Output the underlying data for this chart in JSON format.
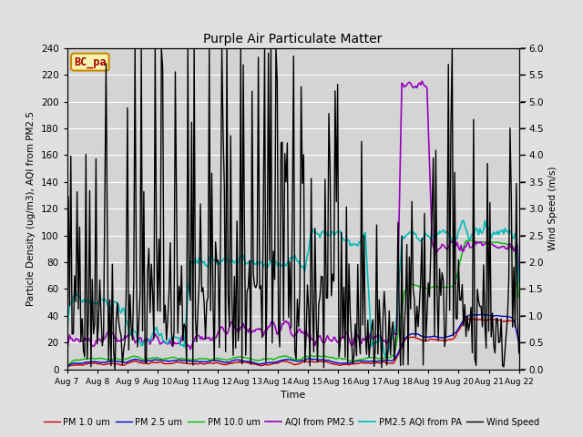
{
  "title": "Purple Air Particulate Matter",
  "xlabel": "Time",
  "ylabel_left": "Particle Density (ug/m3), AQI from PM2.5",
  "ylabel_right": "Wind Speed (m/s)",
  "ylim_left": [
    0,
    240
  ],
  "ylim_right": [
    0,
    6.0
  ],
  "yticks_left": [
    0,
    20,
    40,
    60,
    80,
    100,
    120,
    140,
    160,
    180,
    200,
    220,
    240
  ],
  "yticks_right": [
    0.0,
    0.5,
    1.0,
    1.5,
    2.0,
    2.5,
    3.0,
    3.5,
    4.0,
    4.5,
    5.0,
    5.5,
    6.0
  ],
  "xtick_labels": [
    "Aug 7",
    "Aug 8",
    "Aug 9",
    "Aug 10",
    "Aug 11",
    "Aug 12",
    "Aug 13",
    "Aug 14",
    "Aug 15",
    "Aug 16",
    "Aug 17",
    "Aug 18",
    "Aug 19",
    "Aug 20",
    "Aug 21",
    "Aug 22"
  ],
  "station_label": "BC_pa",
  "fig_bg": "#e0e0e0",
  "plot_bg": "#d4d4d4",
  "grid_color": "#ffffff",
  "legend_entries": [
    {
      "label": "PM 1.0 um",
      "color": "#cc0000",
      "lw": 1.0
    },
    {
      "label": "PM 2.5 um",
      "color": "#0000cc",
      "lw": 1.0
    },
    {
      "label": "PM 10.0 um",
      "color": "#00bb00",
      "lw": 1.0
    },
    {
      "label": "AQI from PM2.5",
      "color": "#9900bb",
      "lw": 1.2
    },
    {
      "label": "PM2.5 AQI from PA",
      "color": "#00bbbb",
      "lw": 1.2
    },
    {
      "label": "Wind Speed",
      "color": "#000000",
      "lw": 1.0
    }
  ],
  "seed": 42
}
